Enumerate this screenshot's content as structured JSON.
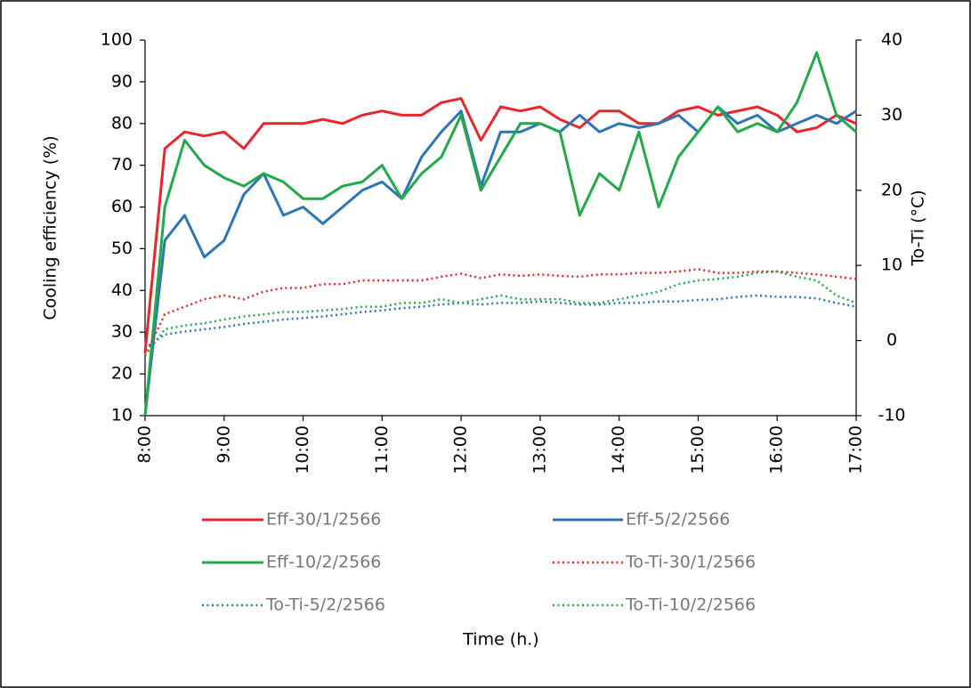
{
  "chart_data": {
    "type": "line",
    "x_label": "Time (h.)",
    "y_label": "Cooling efficiency (%)",
    "y2_label": "To-Ti (°C)",
    "x": [
      8,
      8.25,
      8.5,
      8.75,
      9,
      9.25,
      9.5,
      9.75,
      10,
      10.25,
      10.5,
      10.75,
      11,
      11.25,
      11.5,
      11.75,
      12,
      12.25,
      12.5,
      12.75,
      13,
      13.25,
      13.5,
      13.75,
      14,
      14.25,
      14.5,
      14.75,
      15,
      15.25,
      15.5,
      15.75,
      16,
      16.25,
      16.5,
      16.75,
      17
    ],
    "xlim": [
      8,
      17
    ],
    "xticks": [
      {
        "value": 8,
        "label": "8:00"
      },
      {
        "value": 9,
        "label": "9:00"
      },
      {
        "value": 10,
        "label": "10:00"
      },
      {
        "value": 11,
        "label": "11:00"
      },
      {
        "value": 12,
        "label": "12:00"
      },
      {
        "value": 13,
        "label": "13:00"
      },
      {
        "value": 14,
        "label": "14:00"
      },
      {
        "value": 15,
        "label": "15:00"
      },
      {
        "value": 16,
        "label": "16:00"
      },
      {
        "value": 17,
        "label": "17:00"
      }
    ],
    "ylim": [
      10,
      100
    ],
    "yticks": [
      10,
      20,
      30,
      40,
      50,
      60,
      70,
      80,
      90,
      100
    ],
    "y2lim": [
      -10,
      40
    ],
    "y2ticks": [
      -10,
      0,
      10,
      20,
      30,
      40
    ],
    "grid": false,
    "legend": "bottom",
    "series": [
      {
        "name": "Eff-30/1/2566",
        "color": "#e8262b",
        "style": "solid",
        "values": [
          25,
          74,
          78,
          77,
          78,
          74,
          80,
          80,
          80,
          81,
          80,
          82,
          83,
          82,
          82,
          85,
          86,
          76,
          84,
          83,
          84,
          81,
          79,
          83,
          83,
          80,
          80,
          83,
          84,
          82,
          83,
          84,
          82,
          78,
          79,
          82,
          80
        ]
      },
      {
        "name": "Eff-5/2/2566",
        "color": "#2e75b6",
        "style": "solid",
        "values": [
          10,
          52,
          58,
          48,
          52,
          63,
          68,
          58,
          60,
          56,
          60,
          64,
          66,
          62,
          72,
          78,
          83,
          65,
          78,
          78,
          80,
          78,
          82,
          78,
          80,
          79,
          80,
          82,
          78,
          84,
          80,
          82,
          78,
          80,
          82,
          80,
          83
        ]
      },
      {
        "name": "Eff-10/2/2566",
        "color": "#22aa4a",
        "style": "solid",
        "values": [
          10,
          60,
          76,
          70,
          67,
          65,
          68,
          66,
          62,
          62,
          65,
          66,
          70,
          62,
          68,
          72,
          82,
          64,
          72,
          80,
          80,
          78,
          58,
          68,
          64,
          78,
          60,
          72,
          78,
          84,
          78,
          80,
          78,
          85,
          97,
          82,
          78
        ]
      },
      {
        "name": "To-Ti-30/1/2566",
        "color": "#e8262b",
        "style": "dotted",
        "axis": "y2",
        "values": [
          -2,
          3.5,
          4.5,
          5.5,
          6,
          5.5,
          6.5,
          7,
          7,
          7.5,
          7.5,
          8,
          8,
          8,
          8,
          8.5,
          8.9,
          8.3,
          8.8,
          8.6,
          8.8,
          8.6,
          8.5,
          8.8,
          8.8,
          9,
          9,
          9.2,
          9.5,
          9,
          9,
          9.2,
          9.2,
          9,
          8.8,
          8.5,
          8.2
        ]
      },
      {
        "name": "To-Ti-5/2/2566",
        "color": "#2e75b6",
        "style": "dotted",
        "axis": "y2",
        "values": [
          -1,
          0.8,
          1.2,
          1.5,
          1.8,
          2.2,
          2.5,
          2.8,
          3,
          3.2,
          3.5,
          3.8,
          4,
          4.3,
          4.5,
          4.8,
          5,
          4.8,
          5,
          5,
          5.2,
          5,
          4.8,
          4.8,
          5,
          5,
          5.2,
          5.2,
          5.4,
          5.5,
          5.8,
          6,
          5.8,
          5.8,
          5.6,
          5,
          4.5
        ]
      },
      {
        "name": "To-Ti-10/2/2566",
        "color": "#22aa4a",
        "style": "dotted",
        "axis": "y2",
        "values": [
          -2,
          1.5,
          2,
          2.3,
          2.8,
          3.2,
          3.5,
          3.8,
          3.8,
          4,
          4.2,
          4.5,
          4.5,
          5,
          5,
          5.5,
          5,
          5.5,
          6,
          5.5,
          5.5,
          5.5,
          5,
          5,
          5.5,
          6,
          6.5,
          7.5,
          8,
          8.2,
          8.5,
          9,
          9.2,
          8.5,
          8,
          6,
          5
        ]
      }
    ]
  }
}
